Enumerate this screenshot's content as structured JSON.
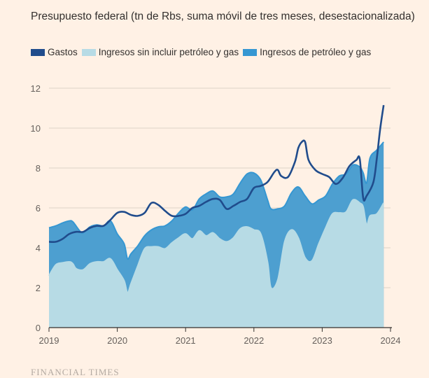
{
  "chart_data": {
    "type": "area",
    "title": "Presupuesto federal (tn de Rbs, suma móvil de tres meses, desestacionalizada)",
    "xlabel": "",
    "ylabel": "",
    "x_ticks": [
      "2019",
      "2020",
      "2021",
      "2022",
      "2023",
      "2024"
    ],
    "y_ticks": [
      0,
      2,
      4,
      6,
      8,
      10,
      12
    ],
    "xlim": [
      2019,
      2024
    ],
    "ylim": [
      0,
      12
    ],
    "grid": true,
    "legend_position": "top-left",
    "colors": {
      "gastos": "#204c8c",
      "ingresos_no_petroleo": "#b7dbe5",
      "ingresos_petroleo": "#3697d2",
      "background": "#fff1e5",
      "grid": "#ddd2c8",
      "axis": "#33302e"
    },
    "series": [
      {
        "name": "Gastos",
        "key": "gastos",
        "points": [
          [
            2019.0,
            4.3
          ],
          [
            2019.1,
            4.3
          ],
          [
            2019.2,
            4.45
          ],
          [
            2019.3,
            4.7
          ],
          [
            2019.4,
            4.8
          ],
          [
            2019.5,
            4.8
          ],
          [
            2019.6,
            5.0
          ],
          [
            2019.7,
            5.1
          ],
          [
            2019.8,
            5.1
          ],
          [
            2019.9,
            5.4
          ],
          [
            2020.0,
            5.75
          ],
          [
            2020.1,
            5.8
          ],
          [
            2020.2,
            5.65
          ],
          [
            2020.3,
            5.6
          ],
          [
            2020.4,
            5.75
          ],
          [
            2020.5,
            6.25
          ],
          [
            2020.6,
            6.15
          ],
          [
            2020.7,
            5.85
          ],
          [
            2020.8,
            5.6
          ],
          [
            2020.9,
            5.6
          ],
          [
            2021.0,
            5.7
          ],
          [
            2021.1,
            6.0
          ],
          [
            2021.2,
            6.1
          ],
          [
            2021.3,
            6.3
          ],
          [
            2021.4,
            6.45
          ],
          [
            2021.5,
            6.4
          ],
          [
            2021.6,
            5.95
          ],
          [
            2021.7,
            6.1
          ],
          [
            2021.8,
            6.3
          ],
          [
            2021.9,
            6.45
          ],
          [
            2022.0,
            7.0
          ],
          [
            2022.1,
            7.1
          ],
          [
            2022.2,
            7.3
          ],
          [
            2022.3,
            7.8
          ],
          [
            2022.35,
            7.9
          ],
          [
            2022.4,
            7.6
          ],
          [
            2022.5,
            7.55
          ],
          [
            2022.6,
            8.3
          ],
          [
            2022.65,
            9.0
          ],
          [
            2022.7,
            9.3
          ],
          [
            2022.75,
            9.3
          ],
          [
            2022.8,
            8.4
          ],
          [
            2022.9,
            7.9
          ],
          [
            2023.0,
            7.7
          ],
          [
            2023.1,
            7.55
          ],
          [
            2023.2,
            7.2
          ],
          [
            2023.3,
            7.5
          ],
          [
            2023.4,
            8.1
          ],
          [
            2023.5,
            8.4
          ],
          [
            2023.55,
            8.45
          ],
          [
            2023.6,
            6.5
          ],
          [
            2023.65,
            6.6
          ],
          [
            2023.75,
            7.3
          ],
          [
            2023.8,
            8.5
          ],
          [
            2023.85,
            10.0
          ],
          [
            2023.9,
            11.15
          ]
        ]
      },
      {
        "name": "Ingresos sin incluir petróleo y gas",
        "key": "ingresos_no_petroleo",
        "points": [
          [
            2019.0,
            2.6
          ],
          [
            2019.1,
            3.15
          ],
          [
            2019.2,
            3.25
          ],
          [
            2019.3,
            3.3
          ],
          [
            2019.35,
            3.2
          ],
          [
            2019.4,
            2.95
          ],
          [
            2019.5,
            2.9
          ],
          [
            2019.6,
            3.2
          ],
          [
            2019.7,
            3.3
          ],
          [
            2019.8,
            3.3
          ],
          [
            2019.9,
            3.45
          ],
          [
            2020.0,
            2.9
          ],
          [
            2020.1,
            2.35
          ],
          [
            2020.15,
            1.75
          ],
          [
            2020.2,
            2.2
          ],
          [
            2020.3,
            3.1
          ],
          [
            2020.4,
            3.95
          ],
          [
            2020.5,
            4.05
          ],
          [
            2020.6,
            4.05
          ],
          [
            2020.7,
            3.95
          ],
          [
            2020.8,
            4.25
          ],
          [
            2020.9,
            4.5
          ],
          [
            2021.0,
            4.7
          ],
          [
            2021.1,
            4.45
          ],
          [
            2021.2,
            4.85
          ],
          [
            2021.3,
            4.6
          ],
          [
            2021.4,
            4.75
          ],
          [
            2021.5,
            4.45
          ],
          [
            2021.6,
            4.3
          ],
          [
            2021.7,
            4.5
          ],
          [
            2021.8,
            4.95
          ],
          [
            2021.9,
            5.05
          ],
          [
            2022.0,
            4.9
          ],
          [
            2022.1,
            4.7
          ],
          [
            2022.2,
            3.3
          ],
          [
            2022.25,
            2.0
          ],
          [
            2022.35,
            2.4
          ],
          [
            2022.45,
            4.3
          ],
          [
            2022.55,
            4.9
          ],
          [
            2022.65,
            4.5
          ],
          [
            2022.75,
            3.5
          ],
          [
            2022.85,
            3.35
          ],
          [
            2022.95,
            4.2
          ],
          [
            2023.05,
            5.0
          ],
          [
            2023.15,
            5.7
          ],
          [
            2023.25,
            5.75
          ],
          [
            2023.35,
            5.8
          ],
          [
            2023.45,
            6.4
          ],
          [
            2023.55,
            6.25
          ],
          [
            2023.6,
            6.05
          ],
          [
            2023.65,
            5.15
          ],
          [
            2023.7,
            5.6
          ],
          [
            2023.8,
            5.7
          ],
          [
            2023.9,
            6.25
          ]
        ]
      },
      {
        "name": "Ingresos de petróleo y gas",
        "key": "ingresos_petroleo",
        "points": [
          [
            2019.0,
            5.0
          ],
          [
            2019.1,
            5.1
          ],
          [
            2019.2,
            5.25
          ],
          [
            2019.3,
            5.35
          ],
          [
            2019.35,
            5.3
          ],
          [
            2019.45,
            4.85
          ],
          [
            2019.5,
            4.75
          ],
          [
            2019.6,
            5.05
          ],
          [
            2019.7,
            5.15
          ],
          [
            2019.8,
            5.1
          ],
          [
            2019.9,
            5.35
          ],
          [
            2020.0,
            4.7
          ],
          [
            2020.1,
            4.2
          ],
          [
            2020.15,
            3.45
          ],
          [
            2020.2,
            3.7
          ],
          [
            2020.3,
            4.1
          ],
          [
            2020.4,
            4.6
          ],
          [
            2020.5,
            4.9
          ],
          [
            2020.6,
            5.05
          ],
          [
            2020.7,
            5.1
          ],
          [
            2020.8,
            5.35
          ],
          [
            2020.9,
            5.75
          ],
          [
            2021.0,
            6.05
          ],
          [
            2021.1,
            5.9
          ],
          [
            2021.2,
            6.45
          ],
          [
            2021.3,
            6.7
          ],
          [
            2021.4,
            6.85
          ],
          [
            2021.5,
            6.55
          ],
          [
            2021.6,
            6.55
          ],
          [
            2021.7,
            6.7
          ],
          [
            2021.8,
            7.25
          ],
          [
            2021.9,
            7.7
          ],
          [
            2022.0,
            7.75
          ],
          [
            2022.1,
            7.4
          ],
          [
            2022.2,
            6.4
          ],
          [
            2022.25,
            5.95
          ],
          [
            2022.35,
            5.95
          ],
          [
            2022.45,
            6.1
          ],
          [
            2022.55,
            6.75
          ],
          [
            2022.65,
            7.05
          ],
          [
            2022.75,
            6.6
          ],
          [
            2022.85,
            6.2
          ],
          [
            2022.95,
            6.4
          ],
          [
            2023.05,
            6.6
          ],
          [
            2023.15,
            7.2
          ],
          [
            2023.25,
            7.6
          ],
          [
            2023.35,
            7.7
          ],
          [
            2023.45,
            8.15
          ],
          [
            2023.55,
            8.05
          ],
          [
            2023.6,
            7.75
          ],
          [
            2023.65,
            7.25
          ],
          [
            2023.7,
            8.5
          ],
          [
            2023.8,
            8.9
          ],
          [
            2023.9,
            9.3
          ]
        ]
      }
    ]
  },
  "legend": {
    "gastos": "Gastos",
    "ingresos_no_petroleo": "Ingresos sin incluir petróleo y gas",
    "ingresos_petroleo": "Ingresos de petróleo y gas"
  },
  "source": "FINANCIAL TIMES"
}
